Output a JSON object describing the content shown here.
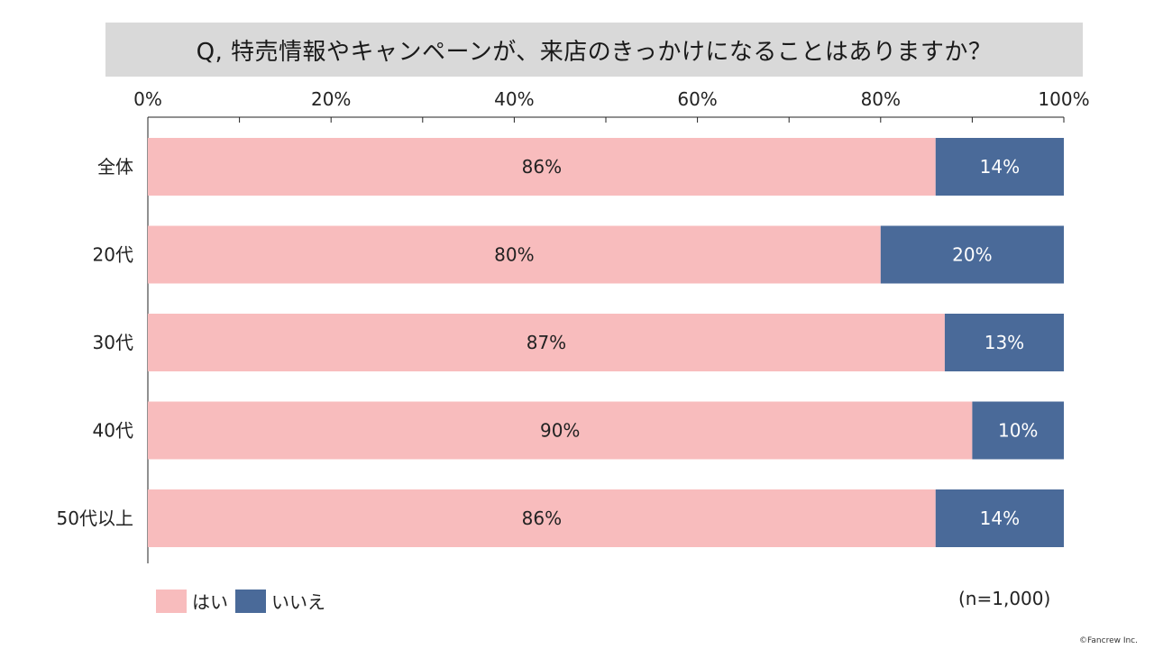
{
  "title": "Q, 特売情報やキャンペーンが、来店のきっかけになることはありますか？",
  "chart_data": {
    "type": "bar",
    "orientation": "horizontal",
    "stacked": true,
    "percent": true,
    "categories": [
      "全体",
      "20代",
      "30代",
      "40代",
      "50代以上"
    ],
    "series": [
      {
        "name": "はい",
        "values": [
          86,
          80,
          87,
          90,
          86
        ],
        "color": "#f8bcbd"
      },
      {
        "name": "いいえ",
        "values": [
          14,
          20,
          13,
          10,
          14
        ],
        "color": "#4a6a99"
      }
    ],
    "xlim": [
      0,
      100
    ],
    "x_ticks": [
      "0%",
      "20%",
      "40%",
      "60%",
      "80%",
      "100%"
    ],
    "xaxis_position": "top",
    "grid": false,
    "legend_position": "bottom-left"
  },
  "legend": {
    "yes": "はい",
    "no": "いいえ"
  },
  "n_note": "(n=1,000)",
  "copyright": "©Fancrew Inc."
}
